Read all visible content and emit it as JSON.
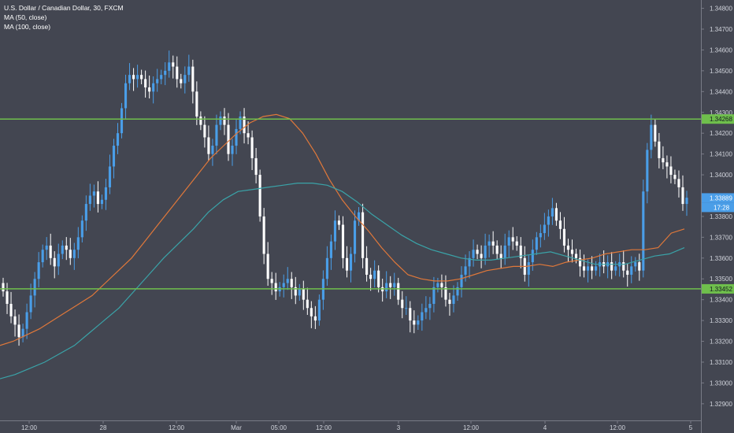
{
  "legend": {
    "title": "U.S. Dollar / Canadian Dollar, 30, FXCM",
    "ma50": "MA (50, close)",
    "ma100": "MA (100, close)"
  },
  "colors": {
    "background": "#434651",
    "up_candle": "#4a9ee8",
    "down_candle": "#ffffff",
    "ma50": "#e0783a",
    "ma100": "#3aa3a8",
    "hline": "#6fbf4c",
    "axis_text": "#d1d4dc",
    "price_badge": "#4a9ee8"
  },
  "chart_data": {
    "type": "candlestick",
    "title": "U.S. Dollar / Canadian Dollar, 30, FXCM",
    "ylim": [
      1.3282,
      1.3484
    ],
    "y_ticks": [
      "1.34800",
      "1.34700",
      "1.34600",
      "1.34500",
      "1.34400",
      "1.34300",
      "1.34200",
      "1.34100",
      "1.34000",
      "1.33800",
      "1.33700",
      "1.33600",
      "1.33500",
      "1.33400",
      "1.33300",
      "1.33200",
      "1.33100",
      "1.33000",
      "1.32900"
    ],
    "x_ticks": [
      "12:00",
      "28",
      "12:00",
      "Mar",
      "05:00",
      "12:00",
      "3",
      "12:00",
      "4",
      "12:00",
      "5"
    ],
    "horizontal_lines": [
      {
        "value": 1.34268,
        "label": "1.34268"
      },
      {
        "value": 1.33452,
        "label": "1.33452"
      }
    ],
    "last_price": {
      "value": 1.33889,
      "label": "1.33889",
      "countdown": "17:28"
    },
    "closes": [
      1.3344,
      1.3338,
      1.3332,
      1.3328,
      1.3322,
      1.3326,
      1.3334,
      1.3342,
      1.335,
      1.3358,
      1.3364,
      1.3366,
      1.336,
      1.3356,
      1.3362,
      1.3366,
      1.3364,
      1.336,
      1.3364,
      1.337,
      1.3378,
      1.3386,
      1.339,
      1.3392,
      1.3386,
      1.3388,
      1.3394,
      1.3404,
      1.3414,
      1.342,
      1.3432,
      1.3444,
      1.3448,
      1.3446,
      1.3448,
      1.3446,
      1.3442,
      1.344,
      1.3444,
      1.3446,
      1.3448,
      1.345,
      1.3454,
      1.3452,
      1.3446,
      1.3444,
      1.3448,
      1.3452,
      1.344,
      1.3428,
      1.3424,
      1.3418,
      1.341,
      1.3414,
      1.3424,
      1.3428,
      1.3424,
      1.341,
      1.3414,
      1.3422,
      1.3428,
      1.342,
      1.3418,
      1.3408,
      1.34,
      1.338,
      1.3362,
      1.335,
      1.3348,
      1.3344,
      1.3346,
      1.3348,
      1.335,
      1.3346,
      1.3342,
      1.3345,
      1.334,
      1.3336,
      1.3332,
      1.333,
      1.334,
      1.335,
      1.336,
      1.3368,
      1.3378,
      1.3376,
      1.336,
      1.3354,
      1.3362,
      1.3378,
      1.3382,
      1.336,
      1.3352,
      1.335,
      1.3354,
      1.3346,
      1.3344,
      1.3348,
      1.3346,
      1.3348,
      1.334,
      1.3336,
      1.3336,
      1.333,
      1.3328,
      1.333,
      1.3334,
      1.3336,
      1.3338,
      1.3346,
      1.3348,
      1.3346,
      1.334,
      1.3338,
      1.3342,
      1.3346,
      1.3352,
      1.3356,
      1.336,
      1.3364,
      1.3362,
      1.336,
      1.3366,
      1.3368,
      1.3366,
      1.3362,
      1.336,
      1.3366,
      1.337,
      1.3368,
      1.3366,
      1.336,
      1.3352,
      1.3358,
      1.3364,
      1.337,
      1.3372,
      1.3376,
      1.338,
      1.3384,
      1.3378,
      1.3374,
      1.3366,
      1.3364,
      1.3362,
      1.336,
      1.3356,
      1.3354,
      1.3356,
      1.3354,
      1.3356,
      1.3358,
      1.3356,
      1.3358,
      1.3354,
      1.3356,
      1.3358,
      1.3354,
      1.3352,
      1.3356,
      1.3358,
      1.3354,
      1.3392,
      1.3412,
      1.3424,
      1.3416,
      1.3408,
      1.3406,
      1.3404,
      1.34,
      1.3398,
      1.3394,
      1.3386,
      1.3389
    ],
    "ma50": [
      1.3318,
      1.332,
      1.3323,
      1.3326,
      1.333,
      1.3334,
      1.3338,
      1.3342,
      1.3348,
      1.3354,
      1.336,
      1.3368,
      1.3376,
      1.3384,
      1.3392,
      1.34,
      1.3408,
      1.3414,
      1.342,
      1.3425,
      1.3428,
      1.3429,
      1.3427,
      1.342,
      1.341,
      1.3398,
      1.3388,
      1.338,
      1.3373,
      1.3365,
      1.3358,
      1.3352,
      1.335,
      1.3349,
      1.3349,
      1.335,
      1.3352,
      1.3354,
      1.3355,
      1.3356,
      1.3356,
      1.3357,
      1.3356,
      1.3358,
      1.3359,
      1.336,
      1.3362,
      1.3363,
      1.3364,
      1.3364,
      1.3365,
      1.3372,
      1.3374
    ],
    "ma100": [
      1.3302,
      1.3304,
      1.3307,
      1.331,
      1.3314,
      1.3318,
      1.3324,
      1.333,
      1.3336,
      1.3344,
      1.3352,
      1.336,
      1.3367,
      1.3374,
      1.3382,
      1.3388,
      1.3392,
      1.3393,
      1.3394,
      1.3395,
      1.3396,
      1.3396,
      1.3395,
      1.3392,
      1.3387,
      1.3381,
      1.3376,
      1.3371,
      1.3367,
      1.3364,
      1.3362,
      1.336,
      1.3359,
      1.3359,
      1.336,
      1.3361,
      1.3362,
      1.3363,
      1.3361,
      1.3359,
      1.3357,
      1.3357,
      1.3357,
      1.3359,
      1.3361,
      1.3362,
      1.3365
    ]
  }
}
